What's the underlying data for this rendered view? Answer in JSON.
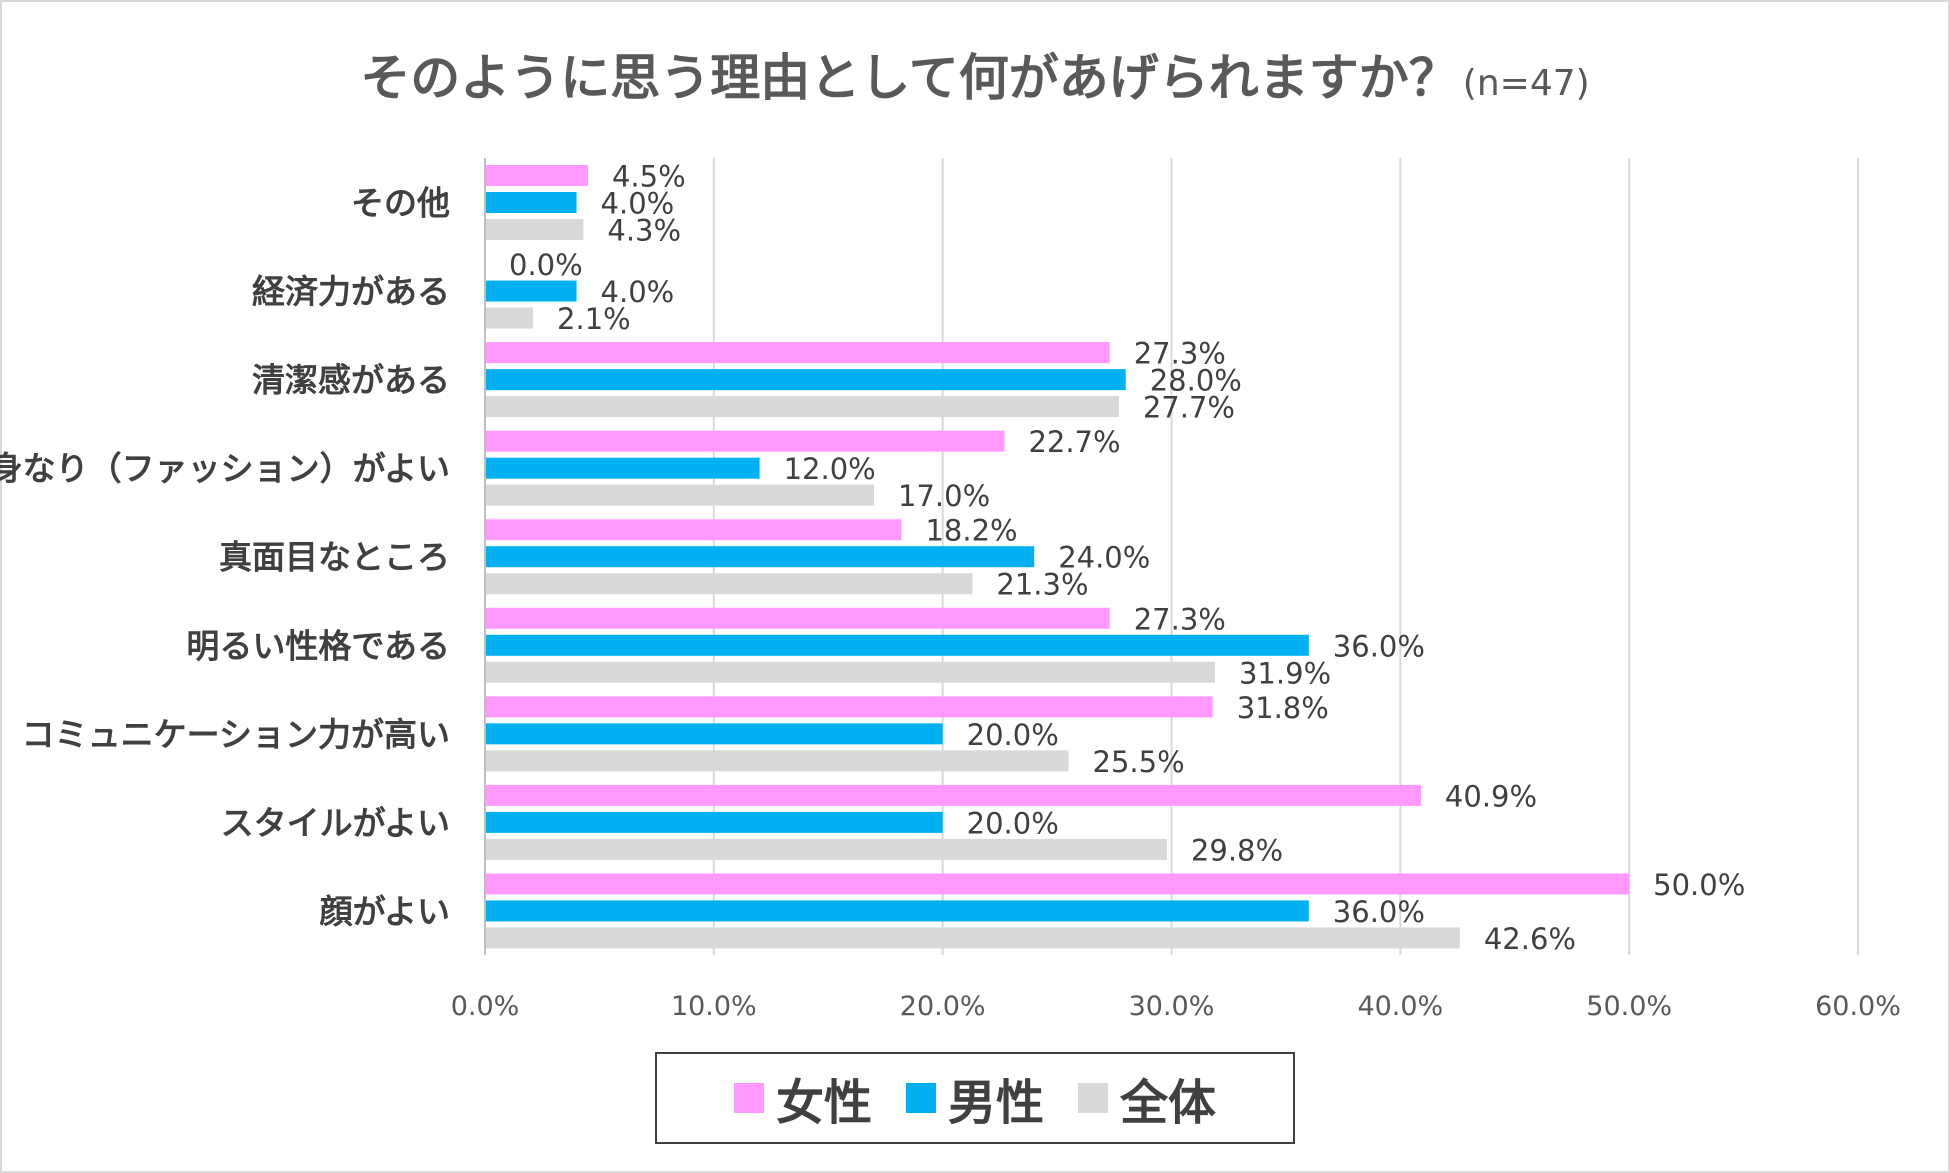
{
  "chart_data": {
    "type": "bar",
    "orientation": "horizontal",
    "title": "そのように思う理由として何があげられますか？",
    "subtitle": "(n=47)",
    "categories": [
      "その他",
      "経済力がある",
      "清潔感がある",
      "身なり（ファッション）がよい",
      "真面目なところ",
      "明るい性格である",
      "コミュニケーション力が高い",
      "スタイルがよい",
      "顔がよい"
    ],
    "series": [
      {
        "name": "女性",
        "color": "#ff99ff",
        "values": [
          4.5,
          0.0,
          27.3,
          22.7,
          18.2,
          27.3,
          31.8,
          40.9,
          50.0
        ]
      },
      {
        "name": "男性",
        "color": "#00b0f0",
        "values": [
          4.0,
          4.0,
          28.0,
          12.0,
          24.0,
          36.0,
          20.0,
          20.0,
          36.0
        ]
      },
      {
        "name": "全体",
        "color": "#d9d9d9",
        "values": [
          4.3,
          2.1,
          27.7,
          17.0,
          21.3,
          31.9,
          25.5,
          29.8,
          42.6
        ]
      }
    ],
    "xlim": [
      0,
      60
    ],
    "xticks": [
      0,
      10,
      20,
      30,
      40,
      50,
      60
    ],
    "tick_suffix": "%",
    "value_suffix": "%",
    "grid": true,
    "legend_position": "bottom"
  }
}
